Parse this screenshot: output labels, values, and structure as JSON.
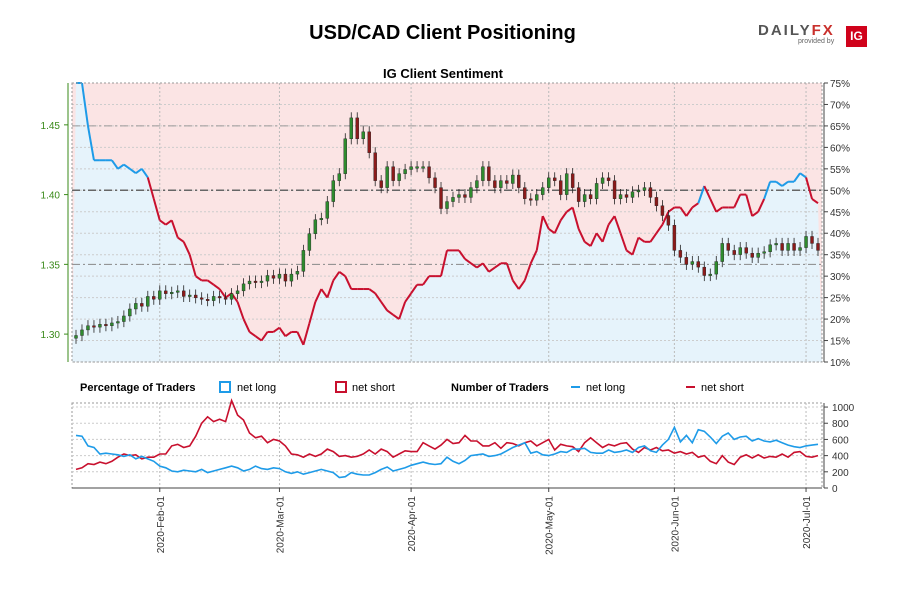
{
  "header": {
    "title": "USD/CAD Client Positioning"
  },
  "logo": {
    "brand_a": "DAILY",
    "brand_b": "FX",
    "provided": "provided by",
    "ig": "IG"
  },
  "colors": {
    "long": "#1e9be8",
    "short": "#c8102e",
    "long_fill": "#e6f3fb",
    "short_fill": "#fbe4e4",
    "price_up": "#2e8b2e",
    "price_axis": "#3a8a1a"
  },
  "chart_data": [
    {
      "type": "candlestick-line",
      "title": "IG Client Sentiment",
      "dates": [
        "2020-01-13",
        "2020-01-14",
        "2020-01-15",
        "2020-01-16",
        "2020-01-17",
        "2020-01-20",
        "2020-01-21",
        "2020-01-22",
        "2020-01-23",
        "2020-01-24",
        "2020-01-27",
        "2020-01-28",
        "2020-01-29",
        "2020-01-30",
        "2020-01-31",
        "2020-02-03",
        "2020-02-04",
        "2020-02-05",
        "2020-02-06",
        "2020-02-07",
        "2020-02-10",
        "2020-02-11",
        "2020-02-12",
        "2020-02-13",
        "2020-02-14",
        "2020-02-17",
        "2020-02-18",
        "2020-02-19",
        "2020-02-20",
        "2020-02-21",
        "2020-02-24",
        "2020-02-25",
        "2020-02-26",
        "2020-02-27",
        "2020-02-28",
        "2020-03-02",
        "2020-03-03",
        "2020-03-04",
        "2020-03-05",
        "2020-03-06",
        "2020-03-09",
        "2020-03-10",
        "2020-03-11",
        "2020-03-12",
        "2020-03-13",
        "2020-03-16",
        "2020-03-17",
        "2020-03-18",
        "2020-03-19",
        "2020-03-20",
        "2020-03-23",
        "2020-03-24",
        "2020-03-25",
        "2020-03-26",
        "2020-03-27",
        "2020-03-30",
        "2020-03-31",
        "2020-04-01",
        "2020-04-02",
        "2020-04-03",
        "2020-04-06",
        "2020-04-07",
        "2020-04-08",
        "2020-04-09",
        "2020-04-10",
        "2020-04-13",
        "2020-04-14",
        "2020-04-15",
        "2020-04-16",
        "2020-04-17",
        "2020-04-20",
        "2020-04-21",
        "2020-04-22",
        "2020-04-23",
        "2020-04-24",
        "2020-04-27",
        "2020-04-28",
        "2020-04-29",
        "2020-04-30",
        "2020-05-01",
        "2020-05-04",
        "2020-05-05",
        "2020-05-06",
        "2020-05-07",
        "2020-05-08",
        "2020-05-11",
        "2020-05-12",
        "2020-05-13",
        "2020-05-14",
        "2020-05-15",
        "2020-05-18",
        "2020-05-19",
        "2020-05-20",
        "2020-05-21",
        "2020-05-22",
        "2020-05-25",
        "2020-05-26",
        "2020-05-27",
        "2020-05-28",
        "2020-05-29",
        "2020-06-01",
        "2020-06-02",
        "2020-06-03",
        "2020-06-04",
        "2020-06-05",
        "2020-06-08",
        "2020-06-09",
        "2020-06-10",
        "2020-06-11",
        "2020-06-12",
        "2020-06-15",
        "2020-06-16",
        "2020-06-17",
        "2020-06-18",
        "2020-06-19",
        "2020-06-22",
        "2020-06-23",
        "2020-06-24",
        "2020-06-25",
        "2020-06-26",
        "2020-06-29",
        "2020-06-30",
        "2020-07-01",
        "2020-07-02",
        "2020-07-03"
      ],
      "close": [
        1.299,
        1.303,
        1.306,
        1.305,
        1.307,
        1.306,
        1.308,
        1.309,
        1.313,
        1.318,
        1.322,
        1.32,
        1.327,
        1.325,
        1.331,
        1.329,
        1.33,
        1.331,
        1.327,
        1.328,
        1.326,
        1.325,
        1.324,
        1.327,
        1.326,
        1.325,
        1.329,
        1.331,
        1.336,
        1.338,
        1.337,
        1.338,
        1.342,
        1.34,
        1.343,
        1.338,
        1.343,
        1.345,
        1.36,
        1.372,
        1.382,
        1.383,
        1.395,
        1.41,
        1.415,
        1.44,
        1.455,
        1.44,
        1.445,
        1.43,
        1.41,
        1.405,
        1.42,
        1.41,
        1.415,
        1.418,
        1.42,
        1.42,
        1.42,
        1.412,
        1.405,
        1.39,
        1.395,
        1.398,
        1.4,
        1.398,
        1.405,
        1.41,
        1.42,
        1.41,
        1.405,
        1.41,
        1.408,
        1.414,
        1.405,
        1.397,
        1.396,
        1.4,
        1.405,
        1.412,
        1.41,
        1.4,
        1.415,
        1.405,
        1.395,
        1.4,
        1.397,
        1.408,
        1.412,
        1.41,
        1.397,
        1.4,
        1.398,
        1.402,
        1.403,
        1.405,
        1.398,
        1.392,
        1.385,
        1.378,
        1.36,
        1.355,
        1.35,
        1.352,
        1.348,
        1.342,
        1.343,
        1.352,
        1.365,
        1.36,
        1.357,
        1.362,
        1.358,
        1.355,
        1.358,
        1.359,
        1.364,
        1.365,
        1.36,
        1.365,
        1.36,
        1.362,
        1.37,
        1.365,
        1.36
      ],
      "net_long_pct": [
        75,
        75,
        65,
        57,
        57,
        57,
        57,
        55,
        56,
        55,
        54,
        55,
        53,
        48,
        43,
        42,
        43,
        39,
        38,
        35,
        30,
        29,
        29,
        28,
        27,
        25,
        26,
        24,
        20,
        17,
        16,
        15,
        17,
        17,
        18,
        16,
        17,
        17,
        14,
        19,
        24,
        27,
        25,
        29,
        31,
        30,
        27,
        27,
        27,
        27,
        26,
        24,
        22,
        21,
        20,
        24,
        26,
        28,
        28,
        30,
        30,
        30,
        36,
        36,
        36,
        34,
        33,
        32,
        33,
        31,
        32,
        33,
        33,
        29,
        27,
        29,
        33,
        36,
        44,
        41,
        40,
        43,
        45,
        46,
        41,
        38,
        37,
        40,
        38,
        42,
        44,
        40,
        36,
        35,
        39,
        38,
        38,
        40,
        42,
        45,
        46,
        46,
        44,
        46,
        47,
        51,
        48,
        45,
        46,
        46,
        46,
        49,
        49,
        44,
        45,
        48,
        52,
        52,
        51,
        52,
        52,
        54,
        53,
        48,
        47
      ],
      "yleft": [
        1.28,
        1.48
      ],
      "yleft_ticks": [
        "1.30",
        "1.35",
        "1.40",
        "1.45"
      ],
      "yright_ticks": [
        "10%",
        "15%",
        "20%",
        "25%",
        "30%",
        "35%",
        "40%",
        "45%",
        "50%",
        "55%",
        "60%",
        "65%",
        "70%",
        "75%"
      ],
      "ref_lines_right_pct": [
        50,
        32.5,
        65
      ],
      "ref_lines_left": [
        1.35
      ]
    },
    {
      "type": "line",
      "title": "",
      "legend_percentage_label": "Percentage of Traders",
      "legend_number_label": "Number of Traders",
      "legend_long": "net long",
      "legend_short": "net short",
      "y_ticks": [
        "0",
        "200",
        "400",
        "600",
        "800",
        "1000"
      ],
      "ylim": [
        0,
        1050
      ],
      "x_ticks": [
        "2020-Feb-01",
        "2020-Mar-01",
        "2020-Apr-01",
        "2020-May-01",
        "2020-Jun-01",
        "2020-Jul-01"
      ],
      "long_counts": [
        650,
        640,
        520,
        500,
        420,
        430,
        420,
        410,
        390,
        410,
        360,
        390,
        360,
        330,
        270,
        250,
        210,
        200,
        220,
        210,
        200,
        230,
        190,
        210,
        230,
        250,
        270,
        250,
        210,
        230,
        270,
        240,
        230,
        250,
        240,
        200,
        180,
        200,
        170,
        190,
        210,
        230,
        210,
        190,
        130,
        140,
        190,
        170,
        160,
        160,
        190,
        230,
        260,
        210,
        230,
        250,
        280,
        300,
        320,
        300,
        290,
        300,
        380,
        330,
        300,
        340,
        400,
        410,
        420,
        390,
        400,
        420,
        460,
        500,
        530,
        560,
        430,
        450,
        410,
        400,
        420,
        450,
        440,
        480,
        480,
        490,
        440,
        430,
        430,
        470,
        440,
        450,
        470,
        440,
        500,
        520,
        460,
        440,
        530,
        600,
        750,
        570,
        650,
        560,
        720,
        700,
        630,
        550,
        640,
        680,
        600,
        630,
        640,
        580,
        610,
        580,
        570,
        590,
        560,
        530,
        510,
        500,
        520,
        530,
        540
      ],
      "short_counts": [
        230,
        250,
        300,
        290,
        320,
        300,
        330,
        380,
        420,
        400,
        410,
        360,
        380,
        380,
        420,
        420,
        520,
        540,
        500,
        520,
        640,
        800,
        880,
        820,
        850,
        820,
        1080,
        900,
        840,
        680,
        620,
        640,
        560,
        600,
        580,
        520,
        420,
        410,
        380,
        420,
        390,
        420,
        480,
        450,
        390,
        400,
        380,
        390,
        420,
        470,
        420,
        480,
        450,
        380,
        420,
        460,
        450,
        450,
        560,
        520,
        480,
        530,
        600,
        550,
        560,
        650,
        580,
        580,
        520,
        520,
        560,
        490,
        560,
        550,
        520,
        560,
        580,
        520,
        560,
        600,
        470,
        540,
        520,
        510,
        450,
        560,
        620,
        560,
        500,
        540,
        520,
        550,
        560,
        480,
        440,
        500,
        470,
        500,
        460,
        470,
        430,
        450,
        420,
        440,
        380,
        400,
        330,
        300,
        400,
        320,
        290,
        380,
        410,
        370,
        410,
        370,
        390,
        380,
        420,
        380,
        440,
        450,
        390,
        380,
        400
      ]
    }
  ]
}
